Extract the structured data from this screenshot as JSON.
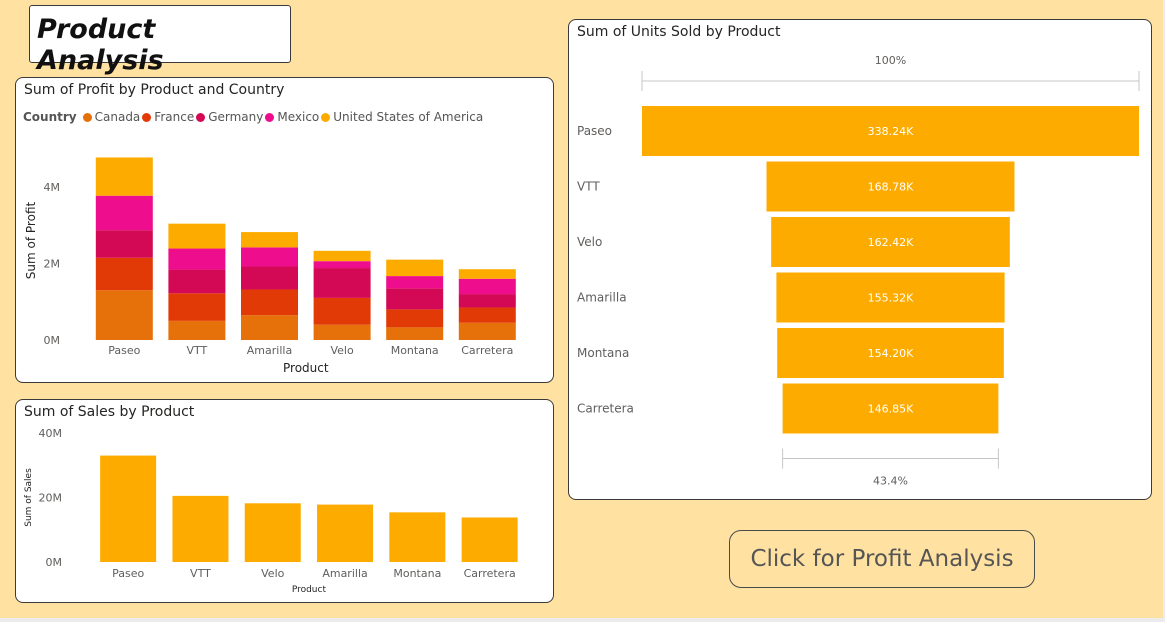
{
  "page": {
    "title": "Product Analysis",
    "button_label": "Click for Profit Analysis"
  },
  "profit_chart": {
    "title": "Sum of Profit by Product and Country",
    "legend_title": "Country",
    "chart_data": {
      "type": "bar",
      "stacked": true,
      "categories": [
        "Paseo",
        "VTT",
        "Amarilla",
        "Velo",
        "Montana",
        "Carretera"
      ],
      "series": [
        {
          "name": "Canada",
          "color": "#e6700a",
          "values": [
            1.3,
            0.5,
            0.65,
            0.4,
            0.33,
            0.45
          ]
        },
        {
          "name": "France",
          "color": "#e23a06",
          "values": [
            0.85,
            0.72,
            0.67,
            0.7,
            0.47,
            0.4
          ]
        },
        {
          "name": "Germany",
          "color": "#d40955",
          "values": [
            0.72,
            0.62,
            0.6,
            0.78,
            0.55,
            0.35
          ]
        },
        {
          "name": "Mexico",
          "color": "#ee0d8d",
          "values": [
            0.9,
            0.55,
            0.5,
            0.18,
            0.32,
            0.4
          ]
        },
        {
          "name": "United States of America",
          "color": "#feab00",
          "values": [
            1.0,
            0.65,
            0.4,
            0.27,
            0.43,
            0.25
          ]
        }
      ],
      "xlabel": "Product",
      "ylabel": "Sum of Profit",
      "ylim": [
        0,
        5.2
      ],
      "yticks": [
        {
          "v": 0,
          "label": "0M"
        },
        {
          "v": 2,
          "label": "2M"
        },
        {
          "v": 4,
          "label": "4M"
        }
      ]
    }
  },
  "sales_chart": {
    "title": "Sum of Sales by Product",
    "chart_data": {
      "type": "bar",
      "categories": [
        "Paseo",
        "VTT",
        "Velo",
        "Amarilla",
        "Montana",
        "Carretera"
      ],
      "values": [
        33.0,
        20.5,
        18.2,
        17.8,
        15.4,
        13.8
      ],
      "color": "#feab00",
      "xlabel": "Product",
      "ylabel": "Sum of Sales",
      "ylim": [
        0,
        40
      ],
      "yticks": [
        {
          "v": 0,
          "label": "0M"
        },
        {
          "v": 20,
          "label": "20M"
        },
        {
          "v": 40,
          "label": "40M"
        }
      ]
    }
  },
  "funnel_chart": {
    "title": "Sum of Units Sold by Product",
    "top_label": "100%",
    "bottom_label": "43.4%",
    "chart_data": {
      "type": "bar",
      "orientation": "funnel",
      "categories": [
        "Paseo",
        "VTT",
        "Velo",
        "Amarilla",
        "Montana",
        "Carretera"
      ],
      "values": [
        338.24,
        168.78,
        162.42,
        155.32,
        154.2,
        146.85
      ],
      "value_labels": [
        "338.24K",
        "168.78K",
        "162.42K",
        "155.32K",
        "154.20K",
        "146.85K"
      ],
      "color": "#feab00"
    }
  }
}
